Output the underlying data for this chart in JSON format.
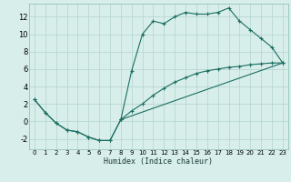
{
  "title": "",
  "xlabel": "Humidex (Indice chaleur)",
  "xlim": [
    -0.5,
    23.5
  ],
  "ylim": [
    -3.2,
    13.5
  ],
  "xticks": [
    0,
    1,
    2,
    3,
    4,
    5,
    6,
    7,
    8,
    9,
    10,
    11,
    12,
    13,
    14,
    15,
    16,
    17,
    18,
    19,
    20,
    21,
    22,
    23
  ],
  "yticks": [
    -2,
    0,
    2,
    4,
    6,
    8,
    10,
    12
  ],
  "bg_color": "#d8eeea",
  "grid_color": "#b8d8d4",
  "line_color": "#1a6e62",
  "line1_x": [
    0,
    1,
    2,
    3,
    4,
    5,
    6,
    7,
    8,
    9,
    10,
    11,
    12,
    13,
    14,
    15,
    16,
    17,
    18,
    19,
    20,
    21,
    22,
    23
  ],
  "line1_y": [
    2.5,
    1.0,
    -0.2,
    -1.0,
    -1.2,
    -1.8,
    -2.2,
    -2.2,
    0.2,
    5.8,
    10.0,
    11.5,
    11.2,
    12.0,
    12.5,
    12.3,
    12.3,
    12.5,
    13.0,
    11.5,
    10.5,
    9.5,
    8.5,
    6.7
  ],
  "line2_x": [
    0,
    1,
    2,
    3,
    4,
    5,
    6,
    7,
    8,
    9,
    10,
    11,
    12,
    13,
    14,
    15,
    16,
    17,
    18,
    19,
    20,
    21,
    22,
    23
  ],
  "line2_y": [
    2.5,
    1.0,
    -0.2,
    -1.0,
    -1.2,
    -1.8,
    -2.2,
    -2.2,
    0.2,
    1.2,
    2.0,
    3.0,
    3.8,
    4.5,
    5.0,
    5.5,
    5.8,
    6.0,
    6.2,
    6.3,
    6.5,
    6.6,
    6.7,
    6.7
  ],
  "line3_x": [
    8,
    23
  ],
  "line3_y": [
    0.2,
    6.7
  ]
}
